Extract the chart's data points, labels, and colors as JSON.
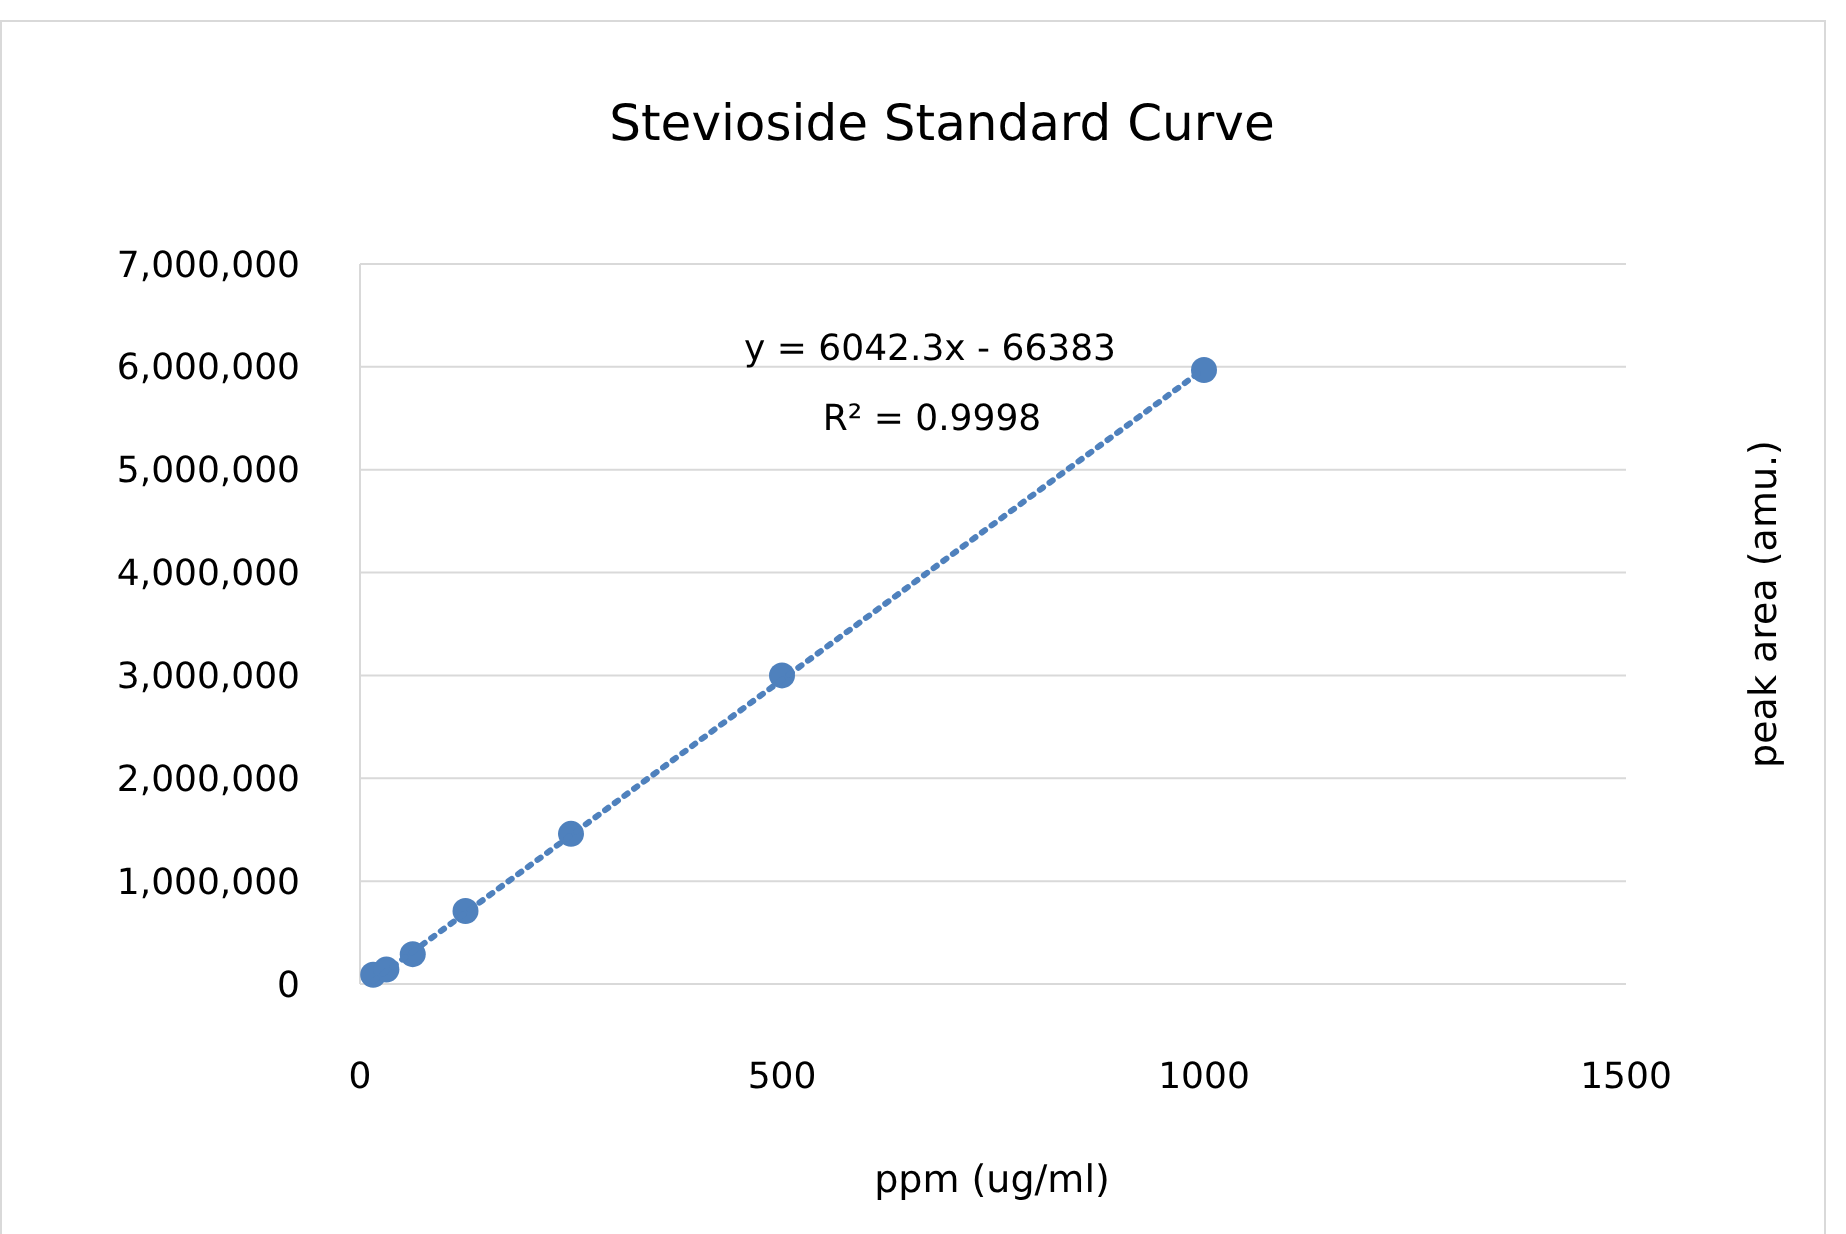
{
  "chart_data": {
    "type": "scatter",
    "title": "Stevioside Standard Curve",
    "xlabel": "ppm (ug/ml)",
    "ylabel": "peak area (amu.)",
    "xlim": [
      0,
      1500
    ],
    "xticks": [
      0,
      500,
      1000,
      1500
    ],
    "ylim": [
      0,
      7000000
    ],
    "yticks": [
      {
        "value": 0,
        "label": "0"
      },
      {
        "value": 1000000,
        "label": "1,000,000"
      },
      {
        "value": 2000000,
        "label": "2,000,000"
      },
      {
        "value": 3000000,
        "label": "3,000,000"
      },
      {
        "value": 4000000,
        "label": "4,000,000"
      },
      {
        "value": 5000000,
        "label": "5,000,000"
      },
      {
        "value": 6000000,
        "label": "6,000,000"
      },
      {
        "value": 7000000,
        "label": "7,000,000"
      }
    ],
    "grid": "y",
    "series": [
      {
        "color": "#4f81bd",
        "marker": "circle",
        "x": [
          15.625,
          31.25,
          62.5,
          125,
          250,
          500,
          1000
        ],
        "values": [
          90000,
          140000,
          290000,
          710000,
          1460000,
          3000000,
          5970000
        ]
      },
      {
        "type": "line",
        "color": "#4f81bd",
        "line_style": "dotted",
        "x": [
          15.625,
          1000
        ],
        "values": [
          30000,
          5980000
        ]
      }
    ],
    "annotations": [
      "y = 6042.3x - 66383",
      "R² = 0.9998"
    ]
  }
}
